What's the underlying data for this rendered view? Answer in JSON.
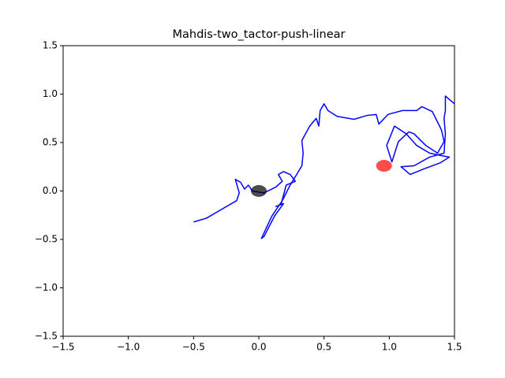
{
  "chart_data": {
    "type": "line",
    "title": "Mahdis-two_tactor-push-linear",
    "xlim": [
      -1.5,
      1.5
    ],
    "ylim": [
      -1.5,
      1.5
    ],
    "xticks": [
      {
        "value": -1.5,
        "label": "−1.5"
      },
      {
        "value": -1.0,
        "label": "−1.0"
      },
      {
        "value": -0.5,
        "label": "−0.5"
      },
      {
        "value": 0,
        "label": "0.0"
      },
      0.5,
      {
        "value": 1.0,
        "label": "1.0"
      },
      1.5
    ],
    "yticks": [
      {
        "value": -1.5,
        "label": "−1.5"
      },
      {
        "value": -1.0,
        "label": "−1.0"
      },
      {
        "value": -0.5,
        "label": "−0.5"
      },
      {
        "value": 0,
        "label": "0.0"
      },
      0.5,
      {
        "value": 1.0,
        "label": "1.0"
      },
      1.5
    ],
    "series": [
      {
        "color": "#0000ff",
        "x": [
          -0.5,
          -0.4,
          -0.26,
          -0.17,
          -0.15,
          -0.18,
          -0.14,
          -0.11,
          -0.08,
          -0.05,
          0.04,
          0.13,
          0.18,
          0.15,
          0.19,
          0.24,
          0.28,
          0.21,
          0.17,
          0.13,
          0.19,
          0.12,
          0.04,
          0.02,
          0.1,
          0.18,
          0.24,
          0.29,
          0.33,
          0.34,
          0.33,
          0.39,
          0.44,
          0.46,
          0.47,
          0.5,
          0.53,
          0.6,
          0.73,
          0.83,
          0.9,
          0.92,
          0.99,
          1.1,
          1.21,
          1.25,
          1.33,
          1.4,
          1.42,
          1.37,
          1.28,
          1.19,
          1.15,
          1.07,
          1.02,
          0.98,
          1.04,
          1.13,
          1.21,
          1.31,
          1.42,
          1.46,
          1.39,
          1.27,
          1.16,
          1.09,
          1.19,
          1.31,
          1.42,
          1.43,
          1.42,
          1.43,
          1.43,
          1.5
        ],
        "values": [
          -0.32,
          -0.28,
          -0.17,
          -0.1,
          -0.02,
          0.12,
          0.09,
          0.02,
          0.06,
          0.0,
          -0.02,
          0.04,
          0.1,
          0.17,
          0.2,
          0.17,
          0.1,
          0.06,
          -0.14,
          -0.16,
          -0.13,
          -0.26,
          -0.47,
          -0.49,
          -0.26,
          -0.1,
          0.06,
          0.17,
          0.26,
          0.39,
          0.52,
          0.67,
          0.75,
          0.67,
          0.83,
          0.9,
          0.83,
          0.77,
          0.74,
          0.78,
          0.79,
          0.69,
          0.79,
          0.83,
          0.83,
          0.87,
          0.82,
          0.63,
          0.51,
          0.39,
          0.47,
          0.59,
          0.61,
          0.51,
          0.3,
          0.47,
          0.67,
          0.59,
          0.47,
          0.39,
          0.36,
          0.35,
          0.29,
          0.23,
          0.17,
          0.25,
          0.26,
          0.35,
          0.39,
          0.59,
          0.75,
          0.83,
          0.98,
          0.9
        ]
      }
    ],
    "markers": [
      {
        "x": 0,
        "y": 0,
        "color": "#000000"
      },
      {
        "x": 0.96,
        "y": 0.26,
        "color": "#ff0000"
      }
    ]
  }
}
